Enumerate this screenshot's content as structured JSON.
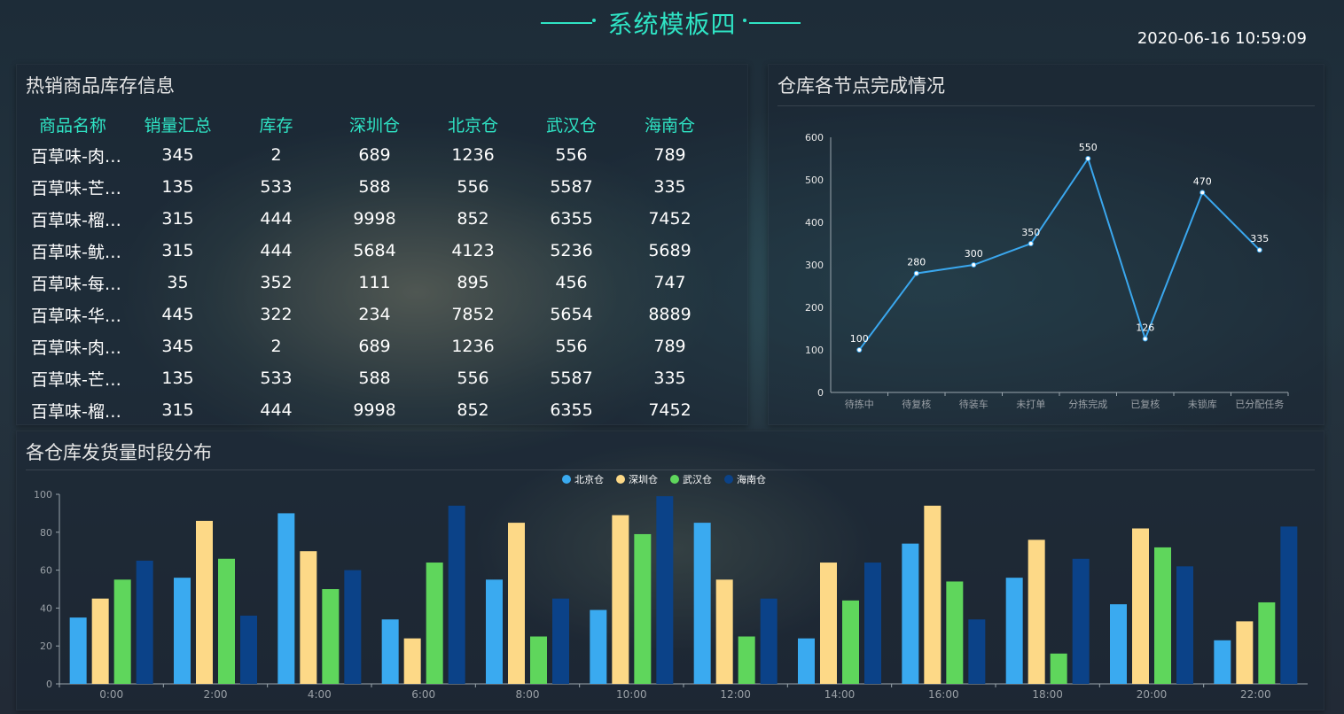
{
  "header": {
    "title": "系统模板四",
    "datetime": "2020-06-16 10:59:09"
  },
  "inventory": {
    "title": "热销商品库存信息",
    "columns": [
      "商品名称",
      "销量汇总",
      "库存",
      "深圳仓",
      "北京仓",
      "武汉仓",
      "海南仓"
    ],
    "rows": [
      [
        "百草味-肉…",
        "345",
        "2",
        "689",
        "1236",
        "556",
        "789"
      ],
      [
        "百草味-芒…",
        "135",
        "533",
        "588",
        "556",
        "5587",
        "335"
      ],
      [
        "百草味-榴…",
        "315",
        "444",
        "9998",
        "852",
        "6355",
        "7452"
      ],
      [
        "百草味-鱿…",
        "315",
        "444",
        "5684",
        "4123",
        "5236",
        "5689"
      ],
      [
        "百草味-每…",
        "35",
        "352",
        "111",
        "895",
        "456",
        "747"
      ],
      [
        "百草味-华…",
        "445",
        "322",
        "234",
        "7852",
        "5654",
        "8889"
      ],
      [
        "百草味-肉…",
        "345",
        "2",
        "689",
        "1236",
        "556",
        "789"
      ],
      [
        "百草味-芒…",
        "135",
        "533",
        "588",
        "556",
        "5587",
        "335"
      ],
      [
        "百草味-榴…",
        "315",
        "444",
        "9998",
        "852",
        "6355",
        "7452"
      ]
    ]
  },
  "progress": {
    "title": "仓库各节点完成情况"
  },
  "distribution": {
    "title": "各仓库发货量时段分布"
  },
  "colors": {
    "accent": "#2fe3c4",
    "line": "#3aa7ee",
    "北京仓": "#3aaaf0",
    "深圳仓": "#fdd987",
    "武汉仓": "#5fd65c",
    "海南仓": "#0b4288"
  },
  "chart_data": [
    {
      "type": "line",
      "categories": [
        "待拣中",
        "待复核",
        "待装车",
        "未打单",
        "分拣完成",
        "已复核",
        "未锁库",
        "已分配任务"
      ],
      "values": [
        100,
        280,
        300,
        350,
        550,
        126,
        470,
        335
      ],
      "ylim": [
        0,
        600
      ],
      "yticks": [
        0,
        100,
        200,
        300,
        400,
        500,
        600
      ],
      "data_labels": true,
      "grid": false
    },
    {
      "type": "bar",
      "categories": [
        "0:00",
        "2:00",
        "4:00",
        "6:00",
        "8:00",
        "10:00",
        "12:00",
        "14:00",
        "16:00",
        "18:00",
        "20:00",
        "22:00"
      ],
      "series": [
        {
          "name": "北京仓",
          "values": [
            35,
            56,
            90,
            34,
            55,
            39,
            85,
            24,
            74,
            56,
            42,
            23
          ]
        },
        {
          "name": "深圳仓",
          "values": [
            45,
            86,
            70,
            24,
            85,
            89,
            55,
            64,
            94,
            76,
            82,
            33
          ]
        },
        {
          "name": "武汉仓",
          "values": [
            55,
            66,
            50,
            64,
            25,
            79,
            25,
            44,
            54,
            16,
            72,
            43
          ]
        },
        {
          "name": "海南仓",
          "values": [
            65,
            36,
            60,
            94,
            45,
            99,
            45,
            64,
            34,
            66,
            62,
            83
          ]
        }
      ],
      "ylim": [
        0,
        100
      ],
      "yticks": [
        0,
        20,
        40,
        60,
        80,
        100
      ],
      "legend": "top-center",
      "grid": false
    }
  ]
}
